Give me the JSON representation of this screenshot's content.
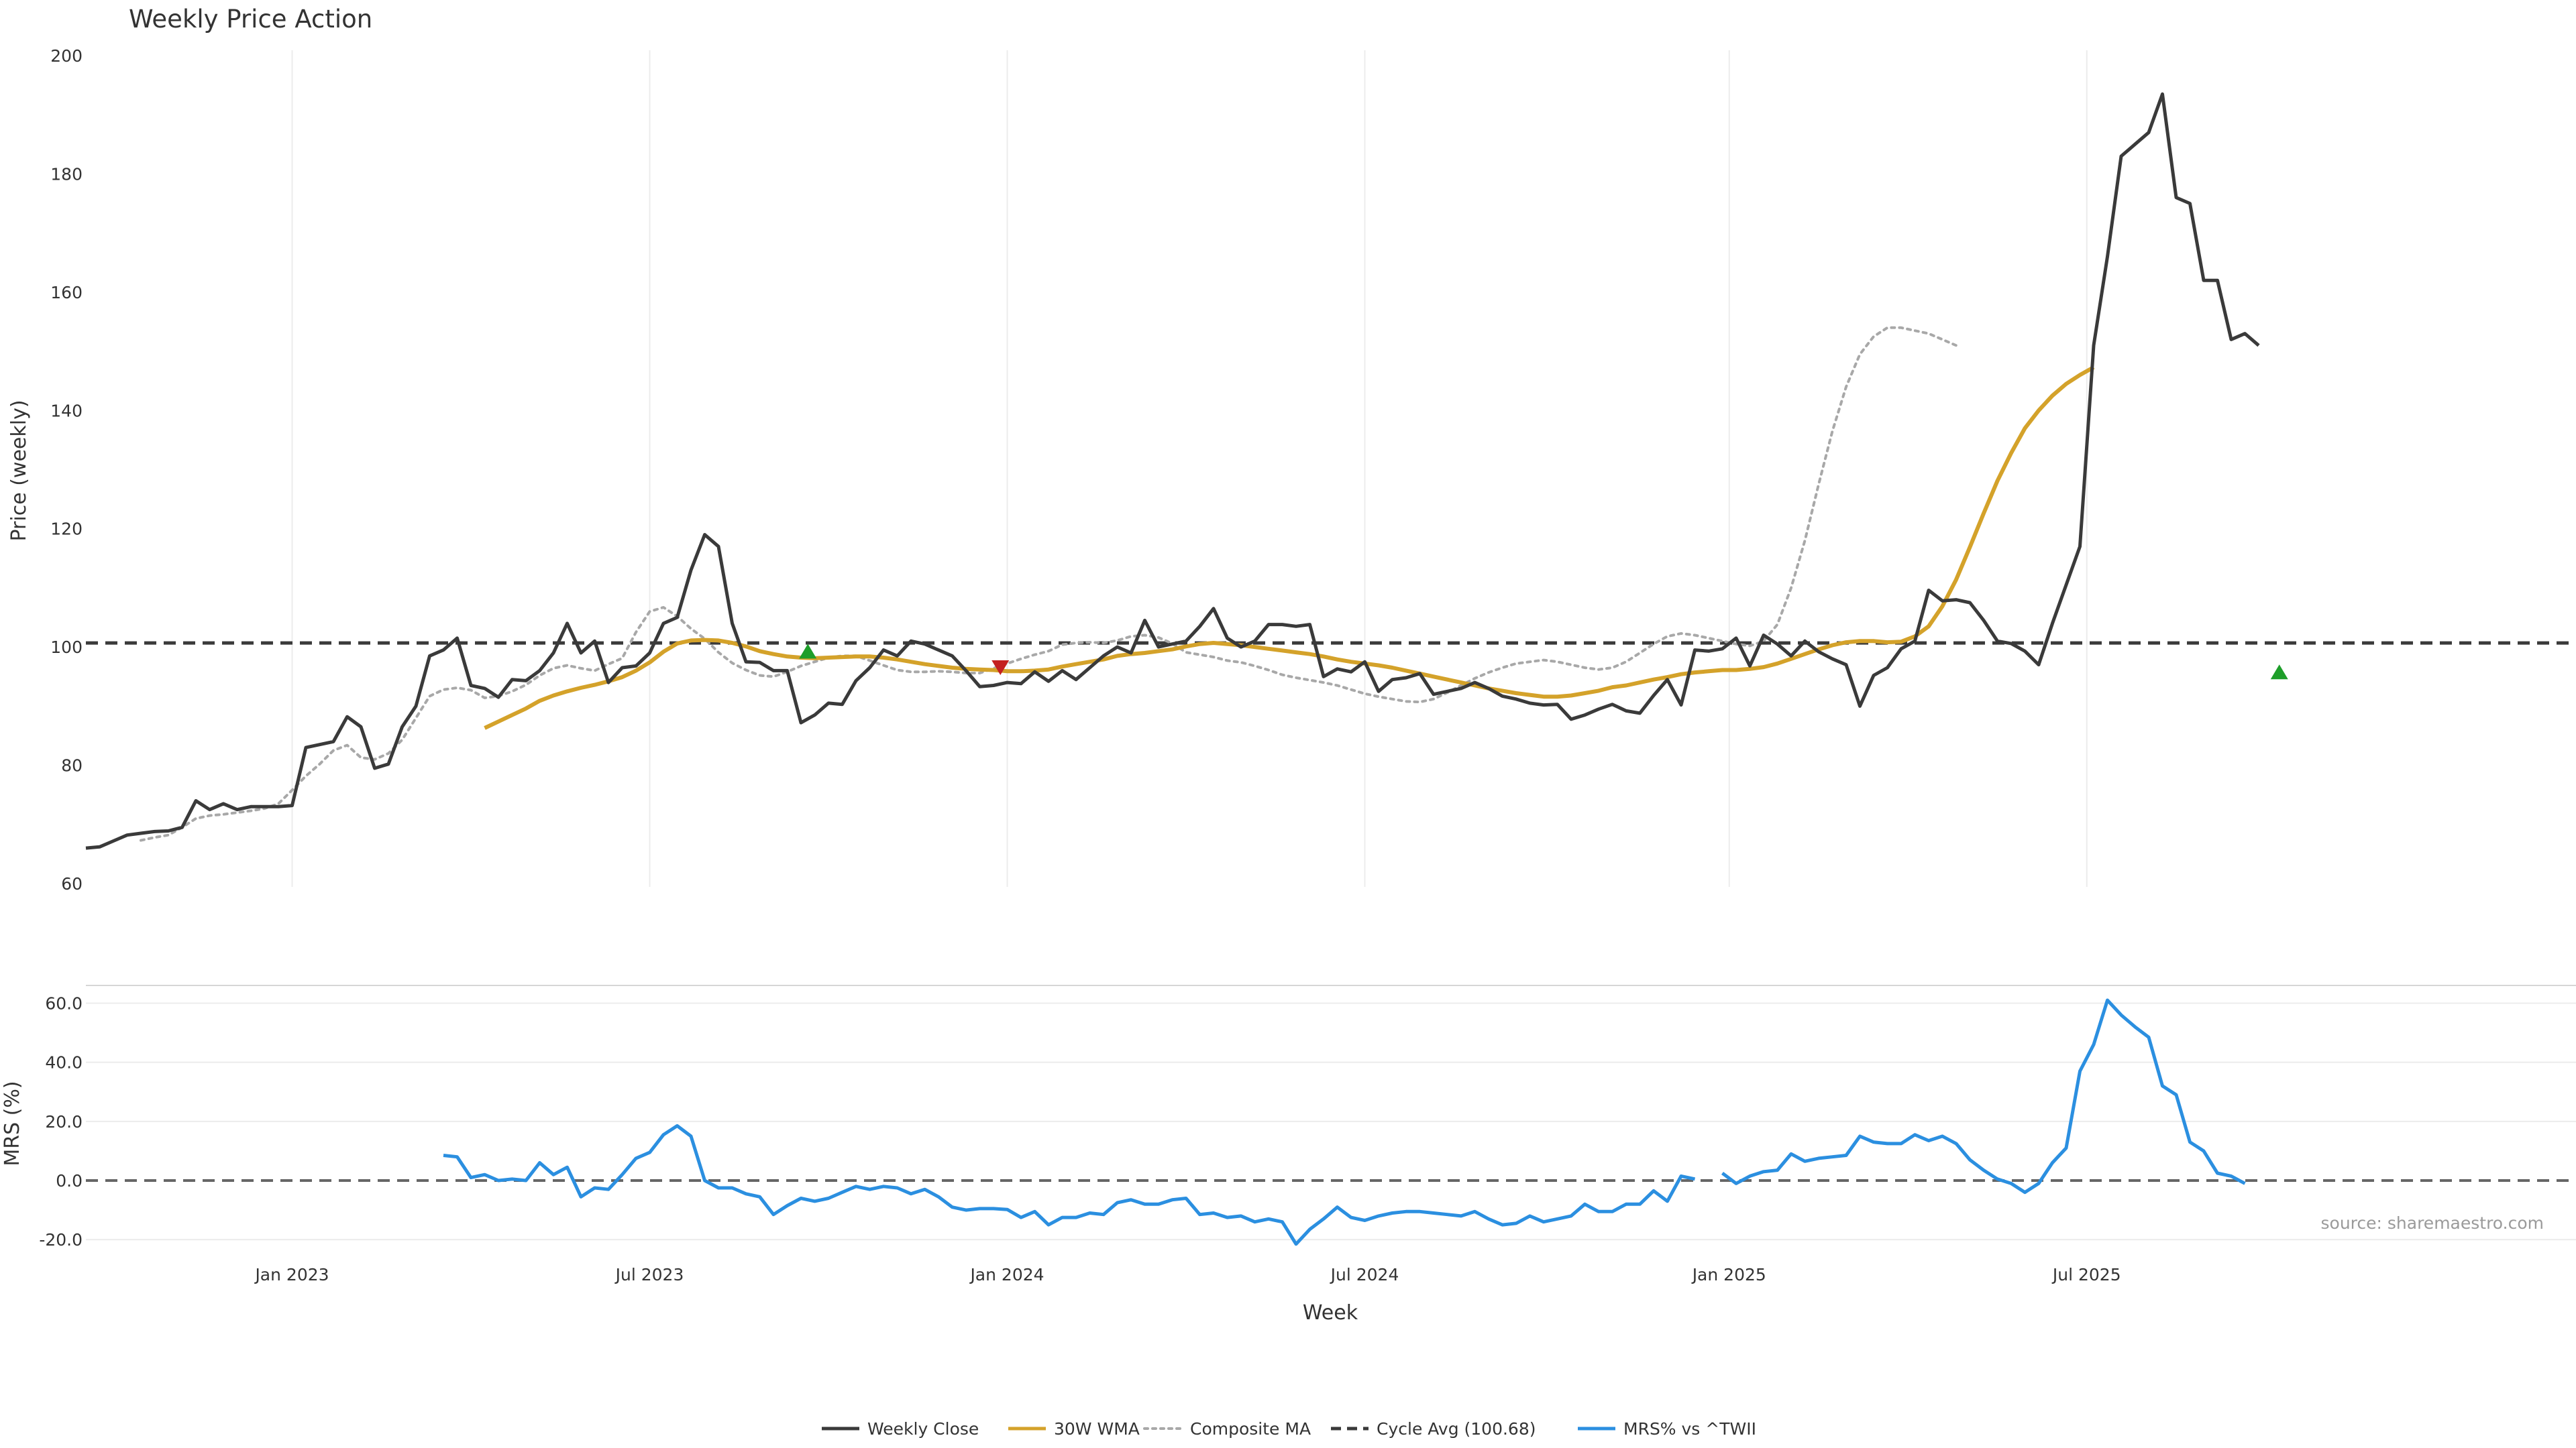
{
  "chart_data": [
    {
      "type": "line",
      "title": "Weekly Price Action",
      "xlabel": "",
      "ylabel": "Price (weekly)",
      "ylim": [
        60,
        200
      ],
      "yticks": [
        60,
        80,
        100,
        120,
        140,
        160,
        180,
        200
      ],
      "grid": "vertical",
      "x_start": "2022-09-19",
      "x_step_days": 7,
      "series": [
        {
          "name": "Weekly Close",
          "color": "#3a3a3a",
          "style": "solid",
          "start_index": 0,
          "values": [
            66,
            66.2,
            67.2,
            68.2,
            68.5,
            68.8,
            68.9,
            69.5,
            74,
            72.5,
            73.5,
            72.5,
            73,
            73,
            73,
            73.2,
            83,
            83.5,
            84,
            88.2,
            86.5,
            79.5,
            80.2,
            86.5,
            90,
            98.5,
            99.5,
            101.5,
            93.5,
            93,
            91.5,
            94.5,
            94.3,
            96,
            99,
            104,
            99,
            101,
            94,
            96.5,
            96.8,
            99,
            104,
            105,
            113,
            119,
            117,
            104,
            97.5,
            97.4,
            96,
            96,
            87.2,
            88.5,
            90.5,
            90.3,
            94.3,
            96.5,
            99.5,
            98.5,
            101,
            100.5,
            99.5,
            98.5,
            96,
            93.3,
            93.5,
            94,
            93.8,
            95.8,
            94.2,
            96,
            94.5,
            96.5,
            98.5,
            100,
            99,
            104.5,
            100,
            100.5,
            101,
            103.5,
            106.5,
            101.5,
            100,
            101,
            103.8,
            103.8,
            103.5,
            103.8,
            95,
            96.3,
            95.8,
            97.5,
            92.5,
            94.5,
            94.8,
            95.5,
            92,
            92.5,
            93,
            94,
            93,
            91.7,
            91.2,
            90.5,
            90.2,
            90.3,
            87.8,
            88.5,
            89.5,
            90.3,
            89.2,
            88.8,
            91.8,
            94.5,
            90.2,
            99.5,
            99.3,
            99.7,
            101.5,
            96.8,
            102,
            100.5,
            98.5,
            101,
            99.2,
            98,
            97,
            90,
            95.2,
            96.5,
            99.7,
            101,
            109.6,
            107.8,
            108,
            107.5,
            104.5,
            101,
            100.6,
            99.3,
            97,
            104,
            110.5,
            117,
            151,
            166,
            183,
            185,
            187,
            193.5,
            176,
            175,
            162,
            162,
            152,
            153,
            151
          ]
        },
        {
          "name": "30W WMA",
          "color": "#d4a22a",
          "style": "solid",
          "start_index": 29,
          "values": [
            86.3,
            87.4,
            88.5,
            89.6,
            90.9,
            91.8,
            92.5,
            93.1,
            93.6,
            94.2,
            94.9,
            96,
            97.4,
            99.2,
            100.6,
            101.1,
            101.2,
            101.1,
            100.7,
            100.1,
            99.3,
            98.8,
            98.4,
            98.2,
            98.1,
            98.2,
            98.3,
            98.4,
            98.4,
            98.2,
            97.9,
            97.5,
            97.1,
            96.8,
            96.5,
            96.3,
            96.2,
            96.1,
            95.9,
            95.9,
            96,
            96.2,
            96.7,
            97.1,
            97.5,
            97.9,
            98.5,
            98.8,
            99,
            99.3,
            99.6,
            100.1,
            100.5,
            100.7,
            100.5,
            100.3,
            100,
            99.7,
            99.4,
            99.1,
            98.8,
            98.4,
            97.9,
            97.5,
            97.2,
            96.9,
            96.5,
            96,
            95.5,
            95,
            94.5,
            94,
            93.5,
            93,
            92.6,
            92.2,
            91.9,
            91.6,
            91.6,
            91.8,
            92.2,
            92.6,
            93.2,
            93.5,
            94,
            94.5,
            94.9,
            95.4,
            95.7,
            95.9,
            96.1,
            96.1,
            96.3,
            96.6,
            97.2,
            98,
            98.8,
            99.6,
            100.3,
            100.8,
            101,
            101,
            100.8,
            100.9,
            101.8,
            103.5,
            106.9,
            111.4,
            116.9,
            122.6,
            128.1,
            132.8,
            137,
            140,
            142.5,
            144.5,
            146,
            147.3
          ]
        },
        {
          "name": "Composite MA",
          "color": "#a8a8a8",
          "style": "dotted",
          "start_index": 4,
          "values": [
            67.3,
            67.8,
            68.2,
            69.5,
            71,
            71.5,
            71.7,
            72,
            72.3,
            72.7,
            73.5,
            75.8,
            78.2,
            80.2,
            82.5,
            83.4,
            81.3,
            81,
            82,
            84.3,
            88,
            91.7,
            92.8,
            93.1,
            92.7,
            91.4,
            91.7,
            92.5,
            93.6,
            95.2,
            96.4,
            96.9,
            96.4,
            96,
            97.1,
            98.1,
            102.5,
            106,
            106.7,
            105.2,
            103.1,
            101.4,
            99.1,
            97.3,
            96.1,
            95.2,
            95,
            95.8,
            96.8,
            97.5,
            98.2,
            98.5,
            98.5,
            97.7,
            96.9,
            96.1,
            95.8,
            95.8,
            95.9,
            95.8,
            95.6,
            95.6,
            96.4,
            97.2,
            98,
            98.7,
            99.3,
            100.4,
            100.7,
            100.8,
            100.7,
            101.1,
            101.8,
            102,
            101.6,
            100.6,
            99.1,
            98.7,
            98.3,
            97.7,
            97.4,
            96.8,
            96.1,
            95.3,
            94.8,
            94.4,
            94,
            93.5,
            92.8,
            92.1,
            91.6,
            91.2,
            90.8,
            90.7,
            91.2,
            92.3,
            93.5,
            94.7,
            95.7,
            96.5,
            97.2,
            97.5,
            97.8,
            97.5,
            97,
            96.5,
            96.2,
            96.5,
            97.5,
            99,
            100.5,
            101.8,
            102.3,
            102,
            101.5,
            101,
            100.5,
            100.2,
            101,
            103.8,
            110,
            118,
            127.5,
            136.5,
            144,
            149.5,
            152.5,
            154,
            154,
            153.5,
            153,
            152,
            151
          ]
        },
        {
          "name": "Cycle Avg (100.68)",
          "color": "#3a3a3a",
          "style": "dashed",
          "constant": 100.68
        }
      ],
      "markers": [
        {
          "kind": "buy",
          "symbol": "triangle-up",
          "color": "#1e9e2a",
          "index": 52.5,
          "value": 99.3
        },
        {
          "kind": "sell",
          "symbol": "triangle-down",
          "color": "#c42020",
          "index": 66.5,
          "value": 96.5
        },
        {
          "kind": "buy",
          "symbol": "triangle-up",
          "color": "#1e9e2a",
          "index": 159.5,
          "value": 95.8
        }
      ]
    },
    {
      "type": "line",
      "title": "",
      "xlabel": "Week",
      "ylabel": "MRS (%)",
      "ylim": [
        -22,
        66
      ],
      "yticks": [
        -20,
        0,
        20,
        40,
        60
      ],
      "ytick_labels": [
        "-20.0",
        "0.0",
        "20.0",
        "40.0",
        "60.0"
      ],
      "grid": "horizontal",
      "x_start": "2022-09-19",
      "x_step_days": 7,
      "xticks": [
        {
          "index": 15,
          "label": "Jan 2023"
        },
        {
          "index": 41,
          "label": "Jul 2023"
        },
        {
          "index": 67,
          "label": "Jan 2024"
        },
        {
          "index": 93,
          "label": "Jul 2024"
        },
        {
          "index": 119.5,
          "label": "Jan 2025"
        },
        {
          "index": 145.5,
          "label": "Jul 2025"
        }
      ],
      "series": [
        {
          "name": "MRS% vs ^TWII",
          "color": "#2b8fe0",
          "style": "solid",
          "start_index": 26,
          "values": [
            8.5,
            8,
            1,
            2,
            0,
            0.5,
            0,
            6,
            2,
            4.5,
            -5.5,
            -2.5,
            -3,
            2,
            7.5,
            9.5,
            15.5,
            18.5,
            15,
            0,
            -2.5,
            -2.5,
            -4.5,
            -5.5,
            -11.5,
            -8.5,
            -6,
            -7,
            -6,
            -4,
            -2,
            -3,
            -2,
            -2.5,
            -4.5,
            -3,
            -5.5,
            -9,
            -10,
            -9.5,
            -9.5,
            -9.8,
            -12.5,
            -10.5,
            -15,
            -12.5,
            -12.5,
            -11,
            -11.5,
            -7.5,
            -6.5,
            -8,
            -8,
            -6.5,
            -6,
            -11.5,
            -11,
            -12.5,
            -12,
            -14,
            -13,
            -14,
            -21.5,
            -16.5,
            -13,
            -9,
            -12.5,
            -13.5,
            -12,
            -11,
            -10.5,
            -10.5,
            -11,
            -11.5,
            -12,
            -10.5,
            -13,
            -15,
            -14.5,
            -12,
            -14,
            -13,
            -12,
            -8,
            -10.5,
            -10.5,
            -8,
            -8,
            -3.5,
            -7,
            1.5,
            0.5,
            null,
            2.5,
            -1,
            1.5,
            3,
            3.5,
            9,
            6.5,
            7.5,
            8,
            8.5,
            15,
            13,
            12.5,
            12.5,
            15.5,
            13.5,
            15,
            12.5,
            7,
            3.5,
            0.5,
            -1,
            -4,
            -1,
            6,
            11,
            37,
            46,
            61,
            56,
            52,
            48.5,
            32,
            29,
            13,
            10,
            2.5,
            1.5,
            -1
          ]
        },
        {
          "name": "Zero line",
          "color": "#666666",
          "style": "dashed",
          "constant": 0
        }
      ],
      "annotations": [
        {
          "text": "source: sharemaestro.com",
          "placement": "bottom-right"
        }
      ]
    }
  ],
  "legend": {
    "placement": "bottom-center",
    "items": [
      {
        "label": "Weekly Close",
        "color": "#3a3a3a",
        "style": "solid"
      },
      {
        "label": "30W WMA",
        "color": "#d4a22a",
        "style": "solid"
      },
      {
        "label": "Composite MA",
        "color": "#a8a8a8",
        "style": "dotted"
      },
      {
        "label": "Cycle Avg (100.68)",
        "color": "#3a3a3a",
        "style": "dashed"
      },
      {
        "label": "MRS% vs ^TWII",
        "color": "#2b8fe0",
        "style": "solid"
      }
    ]
  }
}
